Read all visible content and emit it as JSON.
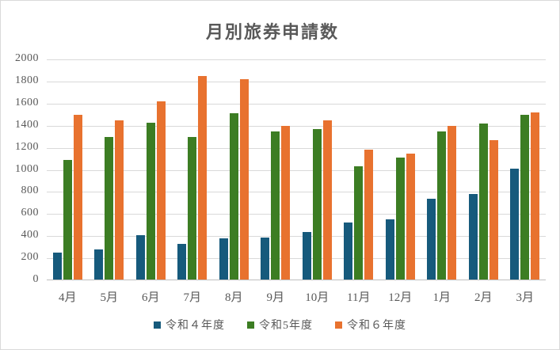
{
  "chart_data": {
    "type": "bar",
    "title": "月別旅券申請数",
    "categories": [
      "4月",
      "5月",
      "6月",
      "7月",
      "8月",
      "9月",
      "10月",
      "11月",
      "12月",
      "1月",
      "2月",
      "3月"
    ],
    "series": [
      {
        "name": "令和４年度",
        "color": "#165a7c",
        "values": [
          250,
          280,
          410,
          330,
          380,
          390,
          440,
          520,
          550,
          740,
          780,
          1010
        ]
      },
      {
        "name": "令和5年度",
        "color": "#3c7d23",
        "values": [
          1090,
          1300,
          1430,
          1300,
          1510,
          1350,
          1370,
          1030,
          1110,
          1350,
          1420,
          1500
        ]
      },
      {
        "name": "令和６年度",
        "color": "#e8722f",
        "values": [
          1500,
          1450,
          1620,
          1850,
          1820,
          1400,
          1450,
          1180,
          1150,
          1400,
          1270,
          1520
        ]
      }
    ],
    "xlabel": "",
    "ylabel": "",
    "ylim": [
      0,
      2000
    ],
    "y_step": 200,
    "y_ticks": [
      0,
      200,
      400,
      600,
      800,
      1000,
      1200,
      1400,
      1600,
      1800,
      2000
    ],
    "grid": "horizontal",
    "legend_position": "bottom",
    "colors": {
      "title_text": "#595959",
      "axis_text": "#595959",
      "gridline": "#d9d9d9",
      "axis_line": "#bfbfbf",
      "border": "#d9d9d9",
      "background": "#ffffff"
    }
  }
}
